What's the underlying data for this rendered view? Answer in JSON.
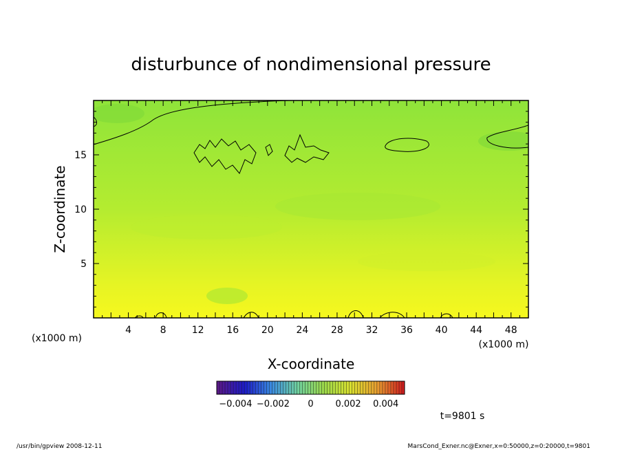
{
  "chart_data": {
    "type": "heatmap",
    "title": "disturbunce of nondimensional pressure",
    "xlabel": "X-coordinate",
    "ylabel": "Z-coordinate",
    "x_unit": "(x1000 m)",
    "y_unit": "(x1000 m)",
    "x_ticks": [
      "4",
      "8",
      "12",
      "16",
      "20",
      "24",
      "28",
      "32",
      "36",
      "40",
      "44",
      "48"
    ],
    "y_ticks": [
      "5",
      "10",
      "15"
    ],
    "xlim": [
      0,
      50
    ],
    "ylim": [
      0,
      20
    ],
    "colorbar": {
      "tick_labels": [
        "−0.004",
        "−0.002",
        "0",
        "0.002",
        "0.004"
      ],
      "range": [
        -0.005,
        0.005
      ],
      "colors": [
        "#5a1a8a",
        "#1c1cc8",
        "#3a8ae0",
        "#6fd0a0",
        "#9cd84a",
        "#d8e030",
        "#e8a030",
        "#d02020"
      ]
    },
    "field_colors": {
      "top": "#8fe43a",
      "middle": "#b4ec30",
      "bottom": "#f6f81e"
    },
    "time_label": "t=9801 s"
  },
  "footer": {
    "left": "/usr/bin/gpview   2008-12-11",
    "right": "MarsCond_Exner.nc@Exner,x=0:50000,z=0:20000,t=9801"
  }
}
